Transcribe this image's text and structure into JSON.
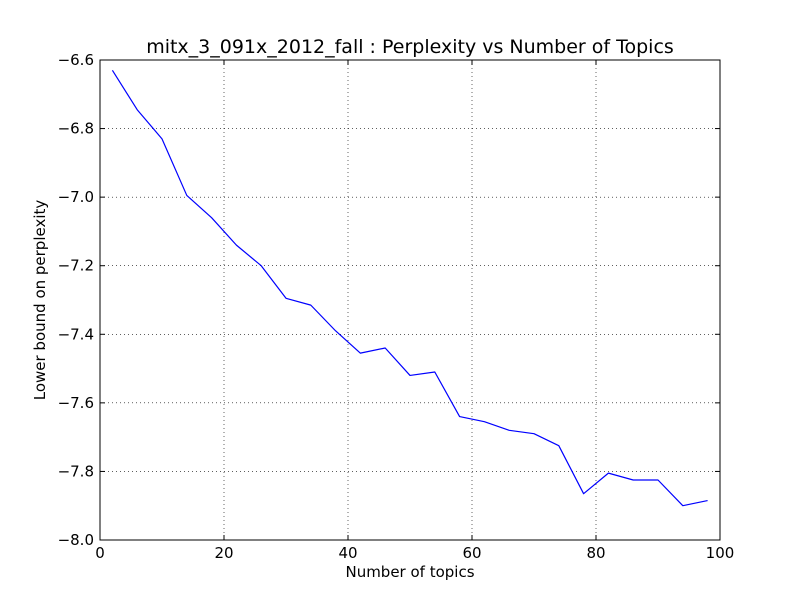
{
  "chart_data": {
    "type": "line",
    "title": "mitx_3_091x_2012_fall : Perplexity vs Number of Topics",
    "xlabel": "Number of topics",
    "ylabel": "Lower bound on perplexity",
    "xlim": [
      0,
      100
    ],
    "ylim": [
      -8.0,
      -6.6
    ],
    "xticks": [
      0,
      20,
      40,
      60,
      80,
      100
    ],
    "xtick_labels": [
      "0",
      "20",
      "40",
      "60",
      "80",
      "100"
    ],
    "yticks": [
      -6.6,
      -6.8,
      -7.0,
      -7.2,
      -7.4,
      -7.6,
      -7.8,
      -8.0
    ],
    "ytick_labels": [
      "−6.6",
      "−6.8",
      "−7.0",
      "−7.2",
      "−7.4",
      "−7.6",
      "−7.8",
      "−8.0"
    ],
    "grid": true,
    "series": [
      {
        "color": "#0000ff",
        "x": [
          2,
          6,
          10,
          14,
          18,
          22,
          26,
          30,
          34,
          38,
          42,
          46,
          50,
          54,
          58,
          62,
          66,
          70,
          74,
          78,
          82,
          86,
          90,
          94,
          98
        ],
        "y": [
          -6.63,
          -6.745,
          -6.83,
          -6.995,
          -7.06,
          -7.14,
          -7.2,
          -7.295,
          -7.315,
          -7.39,
          -7.455,
          -7.44,
          -7.52,
          -7.51,
          -7.64,
          -7.655,
          -7.68,
          -7.69,
          -7.725,
          -7.865,
          -7.805,
          -7.825,
          -7.825,
          -7.9,
          -7.885
        ]
      }
    ]
  }
}
